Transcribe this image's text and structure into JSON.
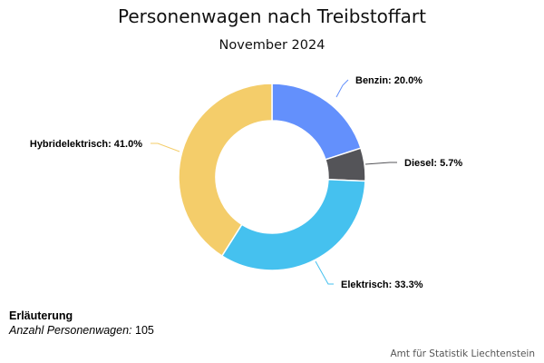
{
  "chart_data": {
    "type": "pie",
    "variant": "donut",
    "title": "Personenwagen nach Treibstoffart",
    "subtitle": "November 2024",
    "slices": [
      {
        "name": "Benzin",
        "value": 20.0,
        "label": "Benzin: 20.0%",
        "color": "#6390fc"
      },
      {
        "name": "Diesel",
        "value": 5.7,
        "label": "Diesel: 5.7%",
        "color": "#545458"
      },
      {
        "name": "Elektrisch",
        "value": 33.3,
        "label": "Elektrisch: 33.3%",
        "color": "#45c1ef"
      },
      {
        "name": "Hybridelektrisch",
        "value": 41.0,
        "label": "Hybridelektrisch: 41.0%",
        "color": "#f4cd6a"
      }
    ],
    "start_angle": "top",
    "direction": "clockwise",
    "legend": "none",
    "unit": "%"
  },
  "note": {
    "heading": "Erläuterung",
    "key": "Anzahl Personenwagen:",
    "value": " 105"
  },
  "source": "Amt für Statistik Liechtenstein"
}
